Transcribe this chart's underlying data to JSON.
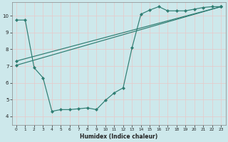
{
  "background_color": "#cde8eb",
  "grid_color": "#b0d4d8",
  "line_color": "#2e7d72",
  "xlabel": "Humidex (Indice chaleur)",
  "xlim": [
    -0.5,
    23.5
  ],
  "ylim": [
    3.5,
    10.8
  ],
  "yticks": [
    4,
    5,
    6,
    7,
    8,
    9,
    10
  ],
  "xticks": [
    0,
    1,
    2,
    3,
    4,
    5,
    6,
    7,
    8,
    9,
    10,
    11,
    12,
    13,
    14,
    15,
    16,
    17,
    18,
    19,
    20,
    21,
    22,
    23
  ],
  "line1_x": [
    0,
    1,
    2,
    3,
    4,
    5,
    6,
    7,
    8,
    9,
    10,
    11,
    12,
    13,
    14,
    15,
    16,
    17,
    18,
    19,
    20,
    21,
    22,
    23
  ],
  "line1_y": [
    9.75,
    9.75,
    6.9,
    6.3,
    4.3,
    4.4,
    4.4,
    4.45,
    4.5,
    4.4,
    4.95,
    5.4,
    5.7,
    8.1,
    10.1,
    10.35,
    10.55,
    10.3,
    10.3,
    10.3,
    10.4,
    10.5,
    10.55,
    10.55
  ],
  "line2_x": [
    0,
    23
  ],
  "line2_y": [
    7.05,
    10.55
  ],
  "line3_x": [
    0,
    23
  ],
  "line3_y": [
    7.3,
    10.55
  ]
}
